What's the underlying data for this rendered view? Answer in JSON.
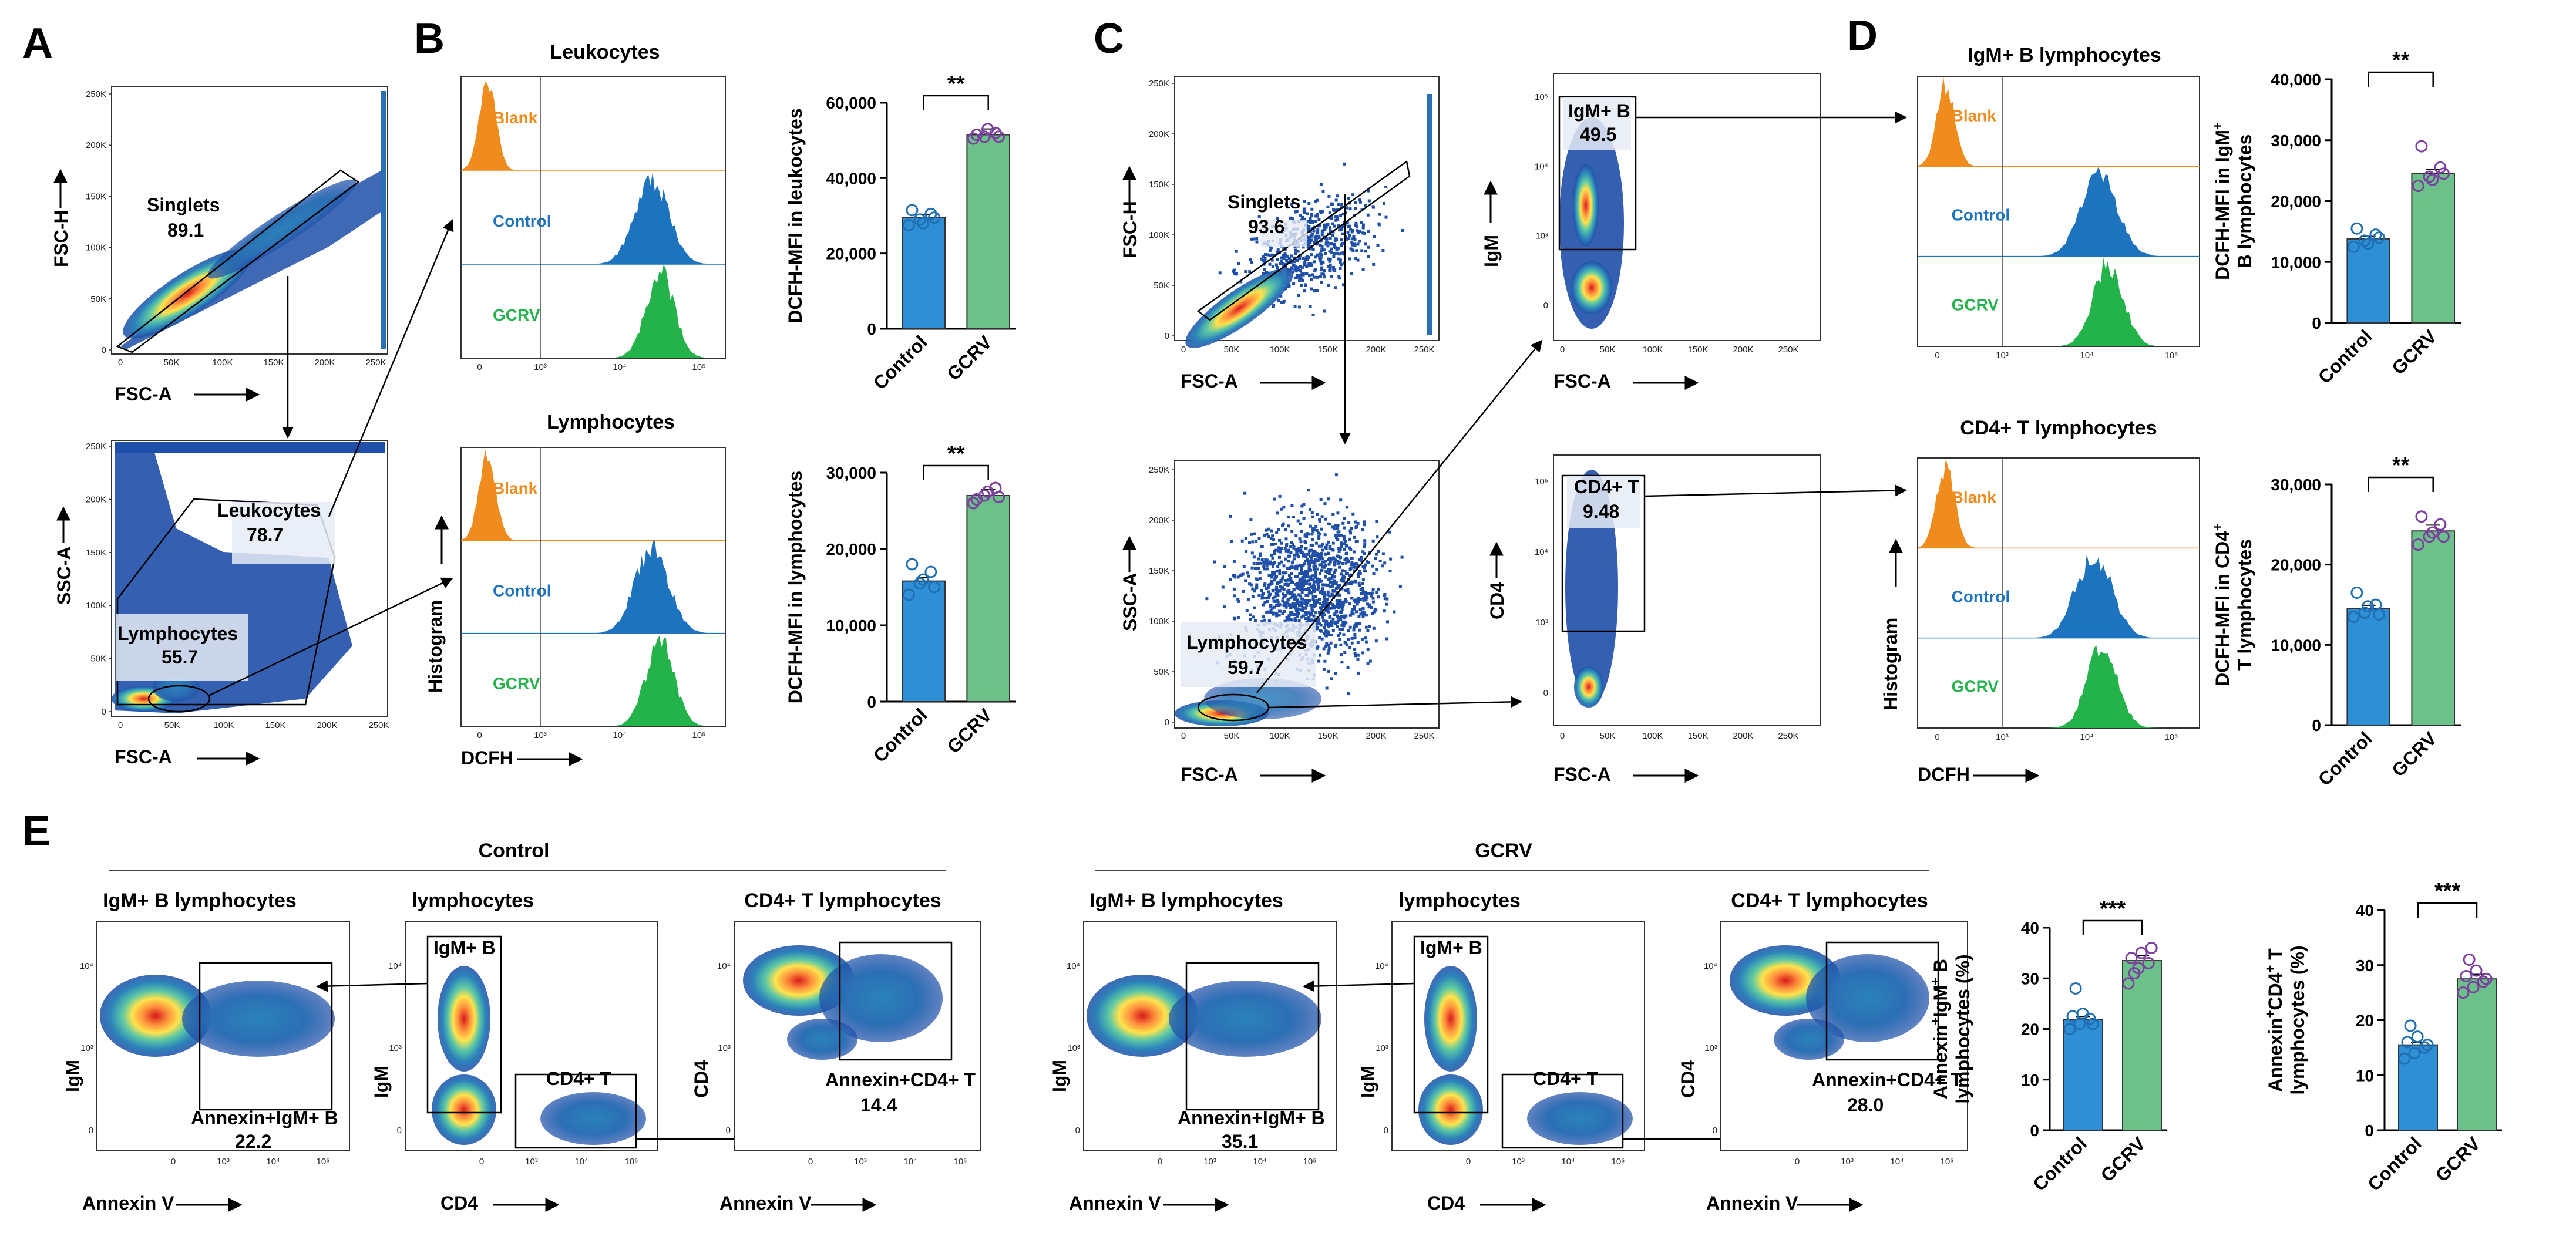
{
  "panels": {
    "A": "A",
    "B": "B",
    "C": "C",
    "D": "D",
    "E": "E"
  },
  "titles": {
    "b_top": "Leukocytes",
    "b_bot": "Lymphocytes",
    "d_top": "IgM+ B lymphocytes",
    "d_bot": "CD4+ T lymphocytes",
    "e_control": "Control",
    "e_gcrv": "GCRV",
    "e_igm": "IgM+ B lymphocytes",
    "e_lym": "lymphocytes",
    "e_cd4": "CD4+ T lymphocytes"
  },
  "axes": {
    "fsc_a": "FSC-A",
    "fsc_h": "FSC-H",
    "ssc_a": "SSC-A",
    "histogram": "Histogram",
    "dcfh": "DCFH",
    "igm": "IgM",
    "cd4": "CD4",
    "annexin": "Annexin V"
  },
  "ticks": {
    "k250": [
      "250K",
      "200K",
      "150K",
      "100K",
      "50K",
      "0"
    ],
    "kx": [
      "0",
      "50K",
      "100K",
      "150K",
      "200K",
      "250K"
    ],
    "kx2": [
      "0",
      "50K",
      "100K",
      "150K",
      "200K",
      "250K"
    ],
    "log": [
      "10⁵",
      "10⁴",
      "10³",
      "0"
    ],
    "logx": [
      "0",
      "10³",
      "10⁴",
      "10⁵"
    ]
  },
  "hist": {
    "blank": "Blank",
    "control": "Control",
    "gcrv": "GCRV"
  },
  "gates": {
    "a_singlets": "Singlets",
    "a_singlets_v": "89.1",
    "a_leuko": "Leukocytes",
    "a_leuko_v": "78.7",
    "a_lymph": "Lymphocytes",
    "a_lymph_v": "55.7",
    "c_singlets": "Singlets",
    "c_singlets_v": "93.6",
    "c_lymph": "Lymphocytes",
    "c_lymph_v": "59.7",
    "c_igm": "IgM+ B",
    "c_igm_v": "49.5",
    "c_cd4": "CD4+ T",
    "c_cd4_v": "9.48",
    "e_igm_gate": "IgM+ B",
    "e_cd4_gate": "CD4+ T",
    "e_annex_igm": "Annexin+IgM+ B",
    "e_annex_cd4": "Annexin+CD4+ T",
    "e_c_igm_v": "22.2",
    "e_c_cd4_v": "14.4",
    "e_g_igm_v": "35.1",
    "e_g_cd4_v": "28.0"
  },
  "chart_data": [
    {
      "type": "bar",
      "id": "B-top",
      "categories": [
        "Control",
        "GCRV"
      ],
      "values": [
        29500,
        51500
      ],
      "points": [
        [
          27500,
          29000,
          30500,
          31500,
          28000,
          29500
        ],
        [
          50500,
          51000,
          52000,
          51500,
          53000,
          51000
        ]
      ],
      "ylabel": "DCFH-MFI in leukocytes",
      "ylim": [
        0,
        60000
      ],
      "yticks": [
        "60,000",
        "40,000",
        "20,000",
        "0"
      ],
      "sig": "**"
    },
    {
      "type": "bar",
      "id": "B-bot",
      "categories": [
        "Control",
        "GCRV"
      ],
      "values": [
        15800,
        27000
      ],
      "points": [
        [
          14000,
          15500,
          17000,
          18000,
          16000,
          15000
        ],
        [
          26000,
          27000,
          28000,
          26500,
          27500,
          26800
        ]
      ],
      "ylabel": "DCFH-MFI in lymphocytes",
      "ylim": [
        0,
        30000
      ],
      "yticks": [
        "30,000",
        "20,000",
        "10,000",
        "0"
      ],
      "sig": "**"
    },
    {
      "type": "bar",
      "id": "D-top",
      "categories": [
        "Control",
        "GCRV"
      ],
      "values": [
        13800,
        24500
      ],
      "points": [
        [
          12500,
          13500,
          14500,
          15500,
          13000,
          14000
        ],
        [
          22500,
          24000,
          25500,
          29000,
          23500,
          24500
        ]
      ],
      "ylabel1": "DCFH-MFI in IgM",
      "ylabel1sup": "+",
      "ylabel2": "B lymphocytes",
      "ylim": [
        0,
        40000
      ],
      "yticks": [
        "40,000",
        "30,000",
        "20,000",
        "10,000",
        "0"
      ],
      "sig": "**"
    },
    {
      "type": "bar",
      "id": "D-bot",
      "categories": [
        "Control",
        "GCRV"
      ],
      "values": [
        14500,
        24200
      ],
      "points": [
        [
          13500,
          14000,
          15000,
          16500,
          14800,
          13800
        ],
        [
          22500,
          23500,
          25000,
          26000,
          24000,
          23500
        ]
      ],
      "ylabel1": "DCFH-MFI in CD4",
      "ylabel1sup": "+",
      "ylabel2": "T lymphocytes",
      "ylim": [
        0,
        30000
      ],
      "yticks": [
        "30,000",
        "20,000",
        "10,000",
        "0"
      ],
      "sig": "**"
    },
    {
      "type": "bar",
      "id": "E-igm",
      "categories": [
        "Control",
        "GCRV"
      ],
      "values": [
        21.8,
        33.5
      ],
      "points": [
        [
          20,
          21,
          22,
          22.5,
          23,
          21,
          28
        ],
        [
          29,
          32,
          33,
          34,
          35,
          36,
          31
        ]
      ],
      "ylabel1": "Annexin",
      "ylabel1sup": "+",
      "ylabel1b": "IgM",
      "ylabel1bsup": "+",
      "ylabel1c": " B",
      "ylabel2": "lymphocytes (%)",
      "ylim": [
        0,
        40
      ],
      "yticks": [
        "40",
        "30",
        "20",
        "10",
        "0"
      ],
      "sig": "***"
    },
    {
      "type": "bar",
      "id": "E-cd4",
      "categories": [
        "Control",
        "GCRV"
      ],
      "values": [
        15.5,
        27.5
      ],
      "points": [
        [
          13,
          14,
          15,
          16,
          17,
          15.5,
          19
        ],
        [
          25,
          26,
          27,
          28,
          29,
          27.5,
          31
        ]
      ],
      "ylabel1": "Annexin",
      "ylabel1sup": "+",
      "ylabel1b": "CD4",
      "ylabel1bsup": "+",
      "ylabel1c": " T",
      "ylabel2": "lymphocytes (%)",
      "ylim": [
        0,
        40
      ],
      "yticks": [
        "40",
        "30",
        "20",
        "10",
        "0"
      ],
      "sig": "***"
    }
  ],
  "colors": {
    "control": "#2E8FD6",
    "gcrv": "#6CC08A",
    "ctrl_dot": "#1F6FB3",
    "gcrv_dot": "#7B3FA0",
    "blank": "#F08C1E",
    "ctrlhist": "#1E73BE",
    "gcrvhist": "#24B24B"
  }
}
